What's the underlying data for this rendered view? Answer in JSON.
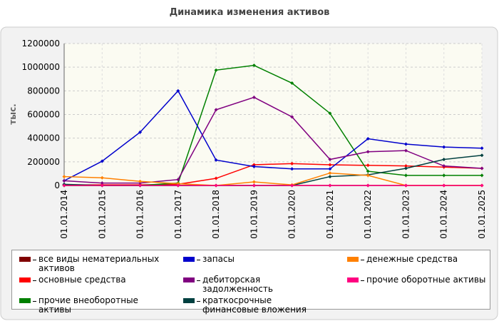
{
  "chart_data": {
    "type": "line",
    "title": "Динамика изменения активов",
    "y_label": "тыс.",
    "categories": [
      "01.01.2014",
      "01.01.2015",
      "01.01.2016",
      "01.01.2017",
      "01.01.2018",
      "01.01.2019",
      "01.01.2020",
      "01.01.2021",
      "01.01.2022",
      "01.01.2023",
      "01.01.2024",
      "01.01.2025"
    ],
    "ylim": [
      0,
      1200000
    ],
    "yticks": [
      0,
      200000,
      400000,
      600000,
      800000,
      1000000,
      1200000
    ],
    "grid": true,
    "series": [
      {
        "name": "все виды нематериальных активов",
        "color": "#800000",
        "values": [
          0,
          0,
          0,
          0,
          0,
          0,
          0,
          0,
          0,
          0,
          0,
          0
        ]
      },
      {
        "name": "основные средства",
        "color": "#ff0000",
        "values": [
          5000,
          5000,
          5000,
          10000,
          60000,
          175000,
          185000,
          175000,
          170000,
          165000,
          155000,
          145000
        ]
      },
      {
        "name": "прочие внеоборотные активы",
        "color": "#008000",
        "values": [
          0,
          0,
          0,
          20000,
          975000,
          1015000,
          865000,
          610000,
          120000,
          85000,
          85000,
          85000
        ]
      },
      {
        "name": "запасы",
        "color": "#0000cc",
        "values": [
          40000,
          205000,
          450000,
          800000,
          215000,
          160000,
          140000,
          140000,
          395000,
          350000,
          325000,
          315000
        ]
      },
      {
        "name": "дебиторская задолженность",
        "color": "#800080",
        "values": [
          40000,
          20000,
          20000,
          50000,
          640000,
          745000,
          580000,
          220000,
          285000,
          295000,
          165000,
          145000
        ]
      },
      {
        "name": "краткосрочные финансовые вложения",
        "color": "#004040",
        "values": [
          10000,
          0,
          0,
          0,
          0,
          0,
          0,
          75000,
          90000,
          145000,
          220000,
          255000
        ]
      },
      {
        "name": "денежные средства",
        "color": "#ff8000",
        "values": [
          75000,
          65000,
          35000,
          15000,
          0,
          30000,
          5000,
          105000,
          85000,
          0,
          0,
          0
        ]
      },
      {
        "name": "прочие оборотные активы",
        "color": "#ff0080",
        "values": [
          0,
          0,
          0,
          0,
          0,
          0,
          0,
          0,
          0,
          0,
          0,
          0
        ]
      }
    ]
  }
}
